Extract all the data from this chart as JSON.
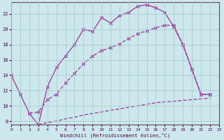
{
  "background_color": "#cce8ec",
  "grid_color": "#aacccc",
  "line_color": "#993399",
  "xlim": [
    0,
    23
  ],
  "ylim": [
    7.5,
    23.5
  ],
  "yticks": [
    8,
    10,
    12,
    14,
    16,
    18,
    20,
    22
  ],
  "xticks": [
    0,
    1,
    2,
    3,
    4,
    5,
    6,
    7,
    8,
    9,
    10,
    11,
    12,
    13,
    14,
    15,
    16,
    17,
    18,
    19,
    20,
    21,
    22,
    23
  ],
  "xlabel": "Windchill (Refroidissement éolien,°C)",
  "series1_x": [
    0,
    1,
    2,
    3,
    4,
    5,
    6,
    7,
    8,
    9,
    10,
    11,
    12,
    13,
    14,
    15,
    16,
    17,
    18,
    19,
    20,
    21,
    22
  ],
  "series1_y": [
    14.0,
    11.5,
    9.0,
    7.5,
    12.5,
    15.0,
    16.5,
    18.0,
    20.0,
    19.7,
    21.5,
    20.8,
    21.8,
    22.2,
    23.0,
    23.2,
    22.8,
    22.2,
    20.3,
    18.0,
    14.8,
    11.5,
    11.5
  ],
  "series2_x": [
    2,
    3,
    4,
    5,
    6,
    7,
    8,
    9,
    10,
    11,
    12,
    13,
    14,
    15,
    16,
    17,
    18,
    19,
    20,
    21,
    22
  ],
  "series2_y": [
    9.0,
    9.2,
    10.8,
    11.5,
    13.0,
    14.2,
    15.5,
    16.5,
    17.2,
    17.6,
    18.1,
    18.8,
    19.4,
    19.8,
    20.2,
    20.5,
    20.5,
    18.0,
    14.8,
    11.5,
    11.5
  ],
  "series3_x": [
    3,
    4,
    5,
    6,
    7,
    8,
    9,
    10,
    11,
    12,
    13,
    14,
    15,
    16,
    17,
    18,
    19,
    20,
    21,
    22
  ],
  "series3_y": [
    7.5,
    7.8,
    8.0,
    8.3,
    8.5,
    8.8,
    9.0,
    9.2,
    9.4,
    9.6,
    9.8,
    10.0,
    10.2,
    10.4,
    10.5,
    10.6,
    10.7,
    10.8,
    10.9,
    11.0
  ]
}
